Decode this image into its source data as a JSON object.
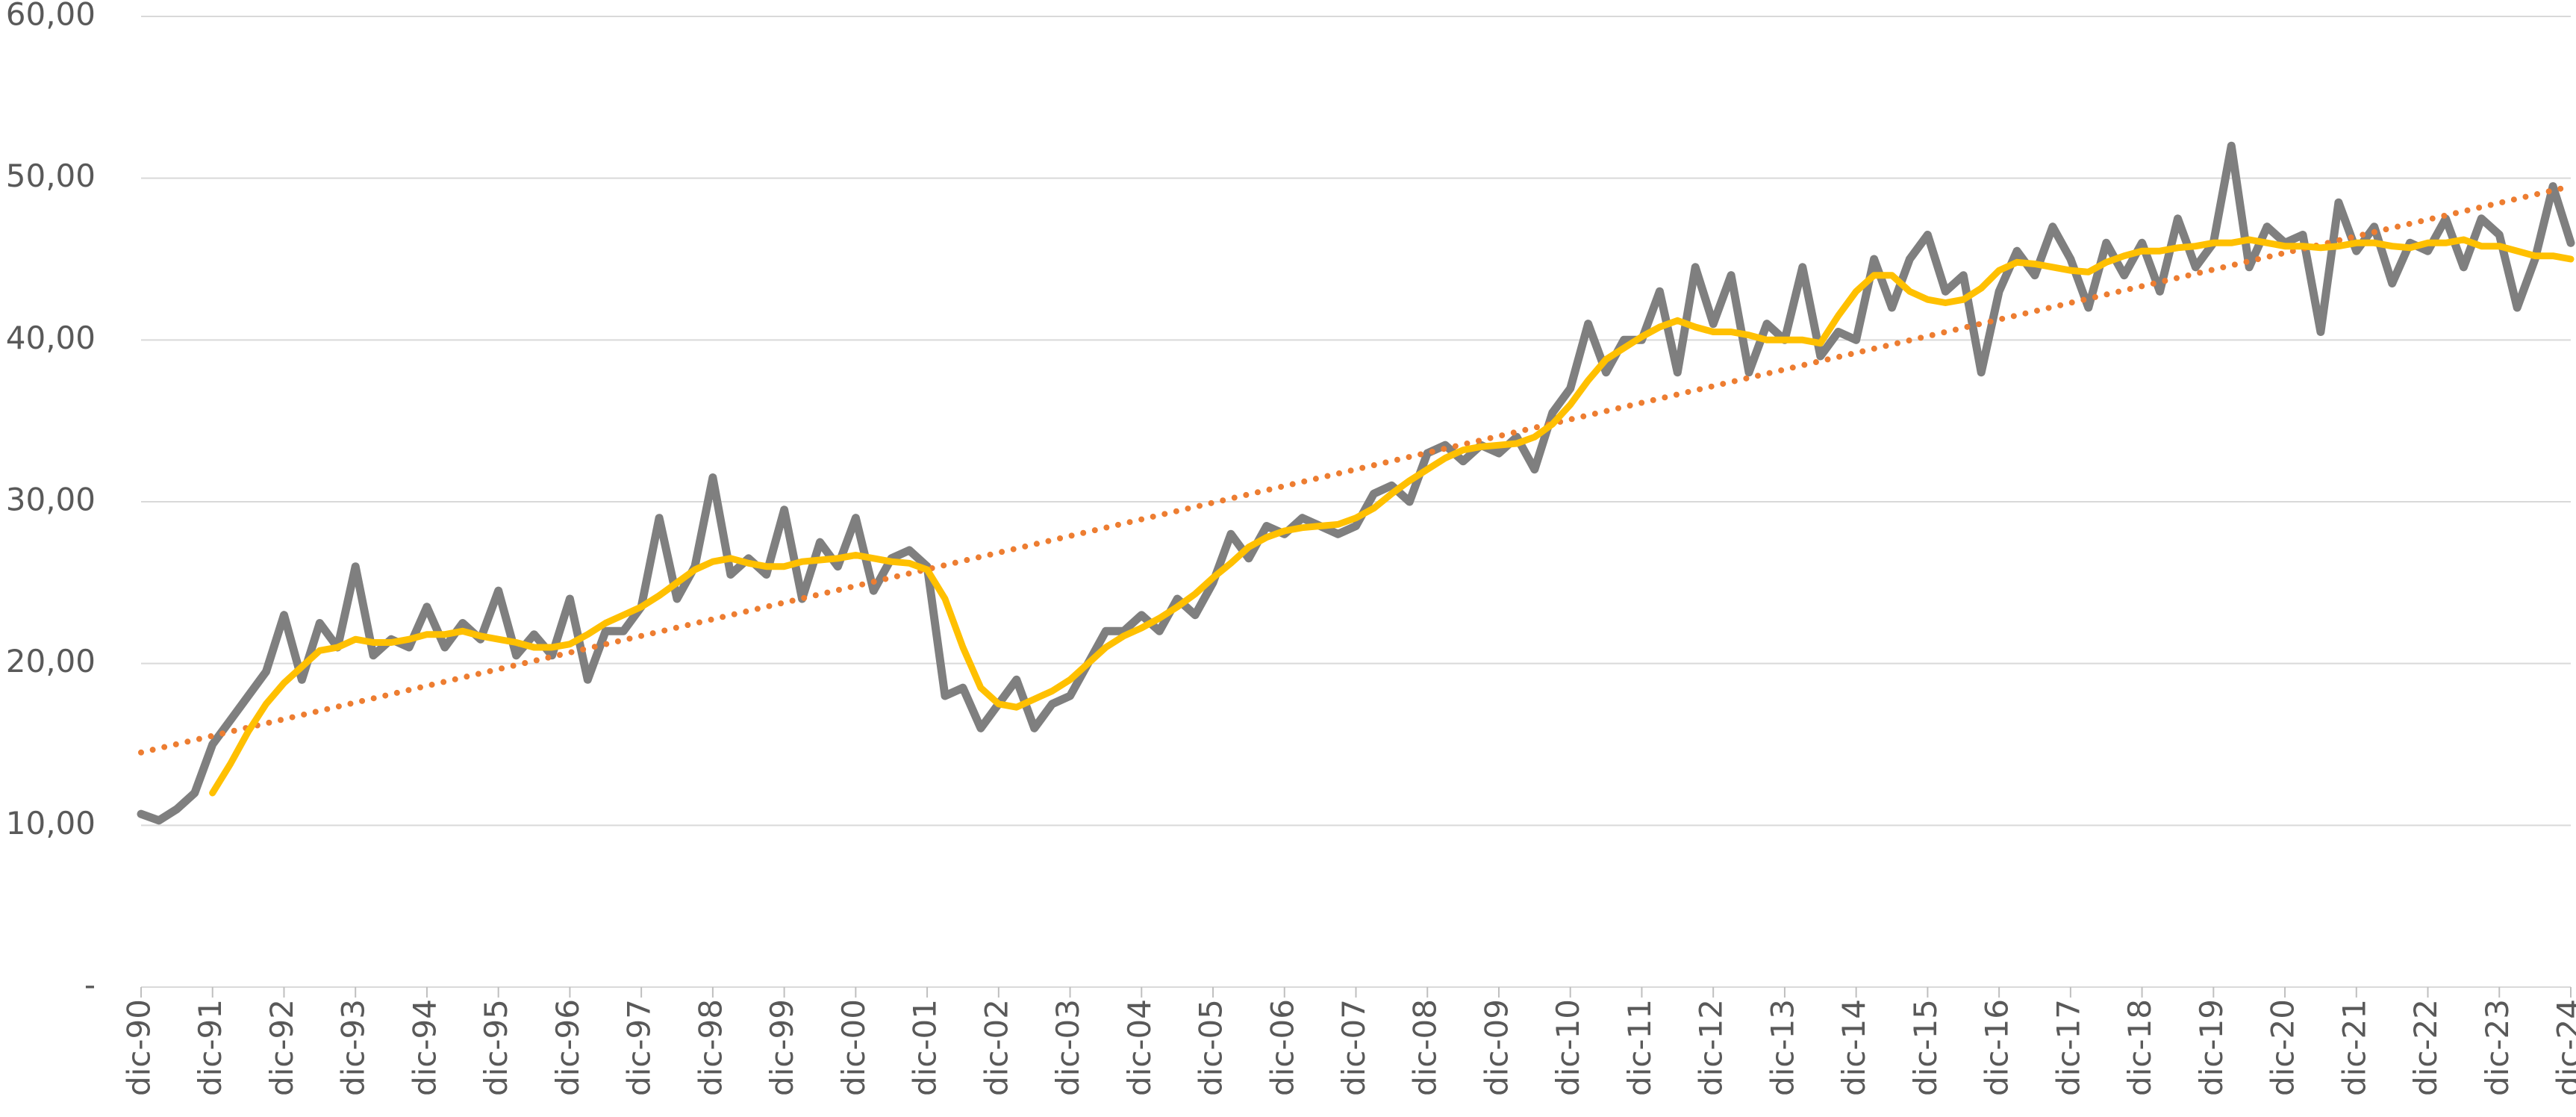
{
  "chart_data": {
    "type": "line",
    "x": [
      1990.92,
      1991.17,
      1991.42,
      1991.67,
      1991.92,
      1992.17,
      1992.42,
      1992.67,
      1992.92,
      1993.17,
      1993.42,
      1993.67,
      1993.92,
      1994.17,
      1994.42,
      1994.67,
      1994.92,
      1995.17,
      1995.42,
      1995.67,
      1995.92,
      1996.17,
      1996.42,
      1996.67,
      1996.92,
      1997.17,
      1997.42,
      1997.67,
      1997.92,
      1998.17,
      1998.42,
      1998.67,
      1998.92,
      1999.17,
      1999.42,
      1999.67,
      1999.92,
      2000.17,
      2000.42,
      2000.67,
      2000.92,
      2001.17,
      2001.42,
      2001.67,
      2001.92,
      2002.17,
      2002.42,
      2002.67,
      2002.92,
      2003.17,
      2003.42,
      2003.67,
      2003.92,
      2004.17,
      2004.42,
      2004.67,
      2004.92,
      2005.17,
      2005.42,
      2005.67,
      2005.92,
      2006.17,
      2006.42,
      2006.67,
      2006.92,
      2007.17,
      2007.42,
      2007.67,
      2007.92,
      2008.17,
      2008.42,
      2008.67,
      2008.92,
      2009.17,
      2009.42,
      2009.67,
      2009.92,
      2010.17,
      2010.42,
      2010.67,
      2010.92,
      2011.17,
      2011.42,
      2011.67,
      2011.92,
      2012.17,
      2012.42,
      2012.67,
      2012.92,
      2013.17,
      2013.42,
      2013.67,
      2013.92,
      2014.17,
      2014.42,
      2014.67,
      2014.92,
      2015.17,
      2015.42,
      2015.67,
      2015.92,
      2016.17,
      2016.42,
      2016.67,
      2016.92,
      2017.17,
      2017.42,
      2017.67,
      2017.92,
      2018.17,
      2018.42,
      2018.67,
      2018.92,
      2019.17,
      2019.42,
      2019.67,
      2019.92,
      2020.17,
      2020.42,
      2020.67,
      2020.92,
      2021.17,
      2021.42,
      2021.67,
      2021.92,
      2022.17,
      2022.42,
      2022.67,
      2022.92,
      2023.17,
      2023.42,
      2023.67,
      2023.92,
      2024.17,
      2024.42,
      2024.67,
      2024.92
    ],
    "series": [
      {
        "color": "#7f7f7f",
        "values": [
          10.7,
          10.3,
          11.0,
          12.0,
          15.0,
          16.5,
          18.0,
          19.5,
          23.0,
          19.0,
          22.5,
          21.0,
          26.0,
          20.5,
          21.5,
          21.0,
          23.5,
          21.0,
          22.5,
          21.5,
          24.5,
          20.5,
          21.8,
          20.5,
          24.0,
          19.0,
          22.0,
          22.0,
          23.5,
          29.0,
          24.0,
          26.0,
          31.5,
          25.5,
          26.5,
          25.5,
          29.5,
          24.0,
          27.5,
          26.0,
          29.0,
          24.5,
          26.5,
          27.0,
          26.0,
          18.0,
          18.5,
          16.0,
          17.5,
          19.0,
          16.0,
          17.5,
          18.0,
          20.0,
          22.0,
          22.0,
          23.0,
          22.0,
          24.0,
          23.0,
          25.0,
          28.0,
          26.5,
          28.5,
          28.0,
          29.0,
          28.5,
          28.0,
          28.5,
          30.5,
          31.0,
          30.0,
          33.0,
          33.5,
          32.5,
          33.5,
          33.0,
          34.0,
          32.0,
          35.5,
          37.0,
          41.0,
          38.0,
          40.0,
          40.0,
          43.0,
          38.0,
          44.5,
          41.0,
          44.0,
          38.0,
          41.0,
          40.0,
          44.5,
          39.0,
          40.5,
          40.0,
          45.0,
          42.0,
          45.0,
          46.5,
          43.0,
          44.0,
          38.0,
          43.0,
          45.5,
          44.0,
          47.0,
          45.0,
          42.0,
          46.0,
          44.0,
          46.0,
          43.0,
          47.5,
          44.5,
          46.0,
          52.0,
          44.5,
          47.0,
          46.0,
          46.5,
          40.5,
          48.5,
          45.5,
          47.0,
          43.5,
          46.0,
          45.5,
          47.5,
          44.5,
          47.5,
          46.5,
          42.0,
          45.0,
          49.5,
          46.0
        ]
      },
      {
        "color": "#ed7d31",
        "line_style": "dotted",
        "x": [
          1990.92,
          2024.92
        ],
        "values": [
          14.5,
          49.5
        ]
      },
      {
        "color": "#ffc000",
        "values": [
          null,
          null,
          null,
          null,
          12.0,
          13.8,
          15.8,
          17.5,
          18.8,
          19.8,
          20.8,
          21.0,
          21.5,
          21.3,
          21.3,
          21.5,
          21.8,
          21.8,
          22.0,
          21.7,
          21.5,
          21.3,
          21.0,
          21.0,
          21.2,
          21.8,
          22.5,
          23.0,
          23.5,
          24.2,
          25.0,
          25.8,
          26.3,
          26.5,
          26.2,
          26.0,
          26.0,
          26.3,
          26.4,
          26.5,
          26.7,
          26.5,
          26.3,
          26.2,
          25.8,
          24.0,
          21.0,
          18.5,
          17.5,
          17.3,
          17.8,
          18.3,
          19.0,
          20.0,
          21.0,
          21.7,
          22.2,
          22.8,
          23.5,
          24.3,
          25.3,
          26.2,
          27.2,
          27.8,
          28.2,
          28.4,
          28.5,
          28.6,
          29.0,
          29.6,
          30.5,
          31.3,
          32.0,
          32.7,
          33.2,
          33.4,
          33.5,
          33.6,
          34.0,
          34.8,
          36.0,
          37.5,
          38.8,
          39.5,
          40.2,
          40.8,
          41.2,
          40.8,
          40.5,
          40.5,
          40.3,
          40.0,
          40.0,
          40.0,
          39.8,
          41.5,
          43.0,
          44.0,
          44.0,
          43.0,
          42.5,
          42.3,
          42.5,
          43.2,
          44.3,
          44.8,
          44.7,
          44.5,
          44.3,
          44.2,
          44.8,
          45.2,
          45.5,
          45.5,
          45.7,
          45.8,
          46.0,
          46.0,
          46.2,
          46.0,
          45.8,
          45.8,
          45.7,
          45.8,
          46.0,
          46.0,
          45.8,
          45.7,
          46.0,
          46.0,
          46.2,
          45.8,
          45.8,
          45.5,
          45.2,
          45.2,
          45.0
        ]
      }
    ],
    "xlim": [
      1990.92,
      2024.92
    ],
    "xticks": [
      {
        "value": 1990.92,
        "label": "dic-90"
      },
      {
        "value": 1991.92,
        "label": "dic-91"
      },
      {
        "value": 1992.92,
        "label": "dic-92"
      },
      {
        "value": 1993.92,
        "label": "dic-93"
      },
      {
        "value": 1994.92,
        "label": "dic-94"
      },
      {
        "value": 1995.92,
        "label": "dic-95"
      },
      {
        "value": 1996.92,
        "label": "dic-96"
      },
      {
        "value": 1997.92,
        "label": "dic-97"
      },
      {
        "value": 1998.92,
        "label": "dic-98"
      },
      {
        "value": 1999.92,
        "label": "dic-99"
      },
      {
        "value": 2000.92,
        "label": "dic-00"
      },
      {
        "value": 2001.92,
        "label": "dic-01"
      },
      {
        "value": 2002.92,
        "label": "dic-02"
      },
      {
        "value": 2003.92,
        "label": "dic-03"
      },
      {
        "value": 2004.92,
        "label": "dic-04"
      },
      {
        "value": 2005.92,
        "label": "dic-05"
      },
      {
        "value": 2006.92,
        "label": "dic-06"
      },
      {
        "value": 2007.92,
        "label": "dic-07"
      },
      {
        "value": 2008.92,
        "label": "dic-08"
      },
      {
        "value": 2009.92,
        "label": "dic-09"
      },
      {
        "value": 2010.92,
        "label": "dic-10"
      },
      {
        "value": 2011.92,
        "label": "dic-11"
      },
      {
        "value": 2012.92,
        "label": "dic-12"
      },
      {
        "value": 2013.92,
        "label": "dic-13"
      },
      {
        "value": 2014.92,
        "label": "dic-14"
      },
      {
        "value": 2015.92,
        "label": "dic-15"
      },
      {
        "value": 2016.92,
        "label": "dic-16"
      },
      {
        "value": 2017.92,
        "label": "dic-17"
      },
      {
        "value": 2018.92,
        "label": "dic-18"
      },
      {
        "value": 2019.92,
        "label": "dic-19"
      },
      {
        "value": 2020.92,
        "label": "dic-20"
      },
      {
        "value": 2021.92,
        "label": "dic-21"
      },
      {
        "value": 2022.92,
        "label": "dic-22"
      },
      {
        "value": 2023.92,
        "label": "dic-23"
      },
      {
        "value": 2024.92,
        "label": "dic-24"
      }
    ],
    "ylim": [
      0,
      60
    ],
    "yticks": [
      {
        "value": 0,
        "label": "-"
      },
      {
        "value": 10,
        "label": "10,00"
      },
      {
        "value": 20,
        "label": "20,00"
      },
      {
        "value": 30,
        "label": "30,00"
      },
      {
        "value": 40,
        "label": "40,00"
      },
      {
        "value": 50,
        "label": "50,00"
      },
      {
        "value": 60,
        "label": "60,00"
      }
    ],
    "grid": true
  }
}
